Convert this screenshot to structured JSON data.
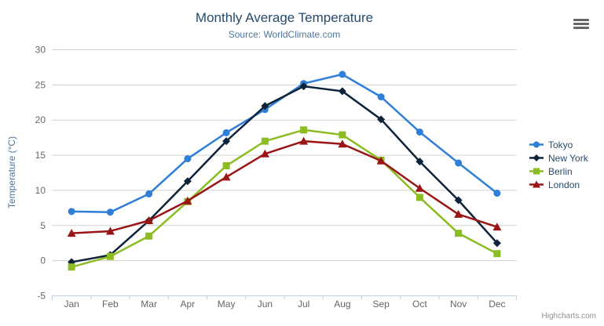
{
  "chart_data": {
    "type": "line",
    "title": "Monthly Average Temperature",
    "subtitle": "Source: WorldClimate.com",
    "ylabel": "Temperature (°C)",
    "categories": [
      "Jan",
      "Feb",
      "Mar",
      "Apr",
      "May",
      "Jun",
      "Jul",
      "Aug",
      "Sep",
      "Oct",
      "Nov",
      "Dec"
    ],
    "ylim": [
      -5,
      30
    ],
    "ytick_interval": 5,
    "ytick_labels": [
      "-5",
      "0",
      "5",
      "10",
      "15",
      "20",
      "25",
      "30"
    ],
    "grid": true,
    "legend_position": "right",
    "series": [
      {
        "name": "Tokyo",
        "color": "#2f7ed8",
        "marker": "circle",
        "values": [
          7.0,
          6.9,
          9.5,
          14.5,
          18.2,
          21.5,
          25.2,
          26.5,
          23.3,
          18.3,
          13.9,
          9.6
        ]
      },
      {
        "name": "New York",
        "color": "#0d233a",
        "marker": "diamond",
        "values": [
          -0.2,
          0.8,
          5.7,
          11.3,
          17.0,
          22.0,
          24.8,
          24.1,
          20.1,
          14.1,
          8.6,
          2.5
        ]
      },
      {
        "name": "Berlin",
        "color": "#8bbc21",
        "marker": "square",
        "values": [
          -0.9,
          0.6,
          3.5,
          8.4,
          13.5,
          17.0,
          18.6,
          17.9,
          14.3,
          9.0,
          3.9,
          1.0
        ]
      },
      {
        "name": "London",
        "color": "#9a1515",
        "marker": "triangle",
        "values": [
          3.9,
          4.2,
          5.7,
          8.5,
          11.9,
          15.2,
          17.0,
          16.6,
          14.2,
          10.3,
          6.6,
          4.8
        ]
      }
    ]
  },
  "credits": {
    "label": "Highcharts.com"
  },
  "export_button": {
    "icon": "hamburger-menu-icon"
  },
  "colors": {
    "title": "#274b6d",
    "subtitle": "#4d759e",
    "axis_labels": "#666666",
    "grid_line": "#d0d0d0",
    "axis_line": "#c0d0e0",
    "legend_text": "#274b6d",
    "credits_text": "#909090"
  }
}
